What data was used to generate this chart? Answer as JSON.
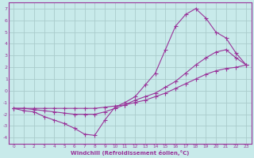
{
  "background_color": "#c8eaea",
  "grid_color": "#aacccc",
  "line_color": "#993399",
  "marker_color": "#993399",
  "xlabel": "Windchill (Refroidissement éolien,°C)",
  "xlim": [
    -0.5,
    23.5
  ],
  "ylim": [
    -4.5,
    7.5
  ],
  "xticks": [
    0,
    1,
    2,
    3,
    4,
    5,
    6,
    7,
    8,
    9,
    10,
    11,
    12,
    13,
    14,
    15,
    16,
    17,
    18,
    19,
    20,
    21,
    22,
    23
  ],
  "yticks": [
    -4,
    -3,
    -2,
    -1,
    0,
    1,
    2,
    3,
    4,
    5,
    6,
    7
  ],
  "line1_x": [
    0,
    1,
    2,
    3,
    4,
    5,
    6,
    7,
    8,
    9,
    10,
    11,
    12,
    13,
    14,
    15,
    16,
    17,
    18,
    19,
    20,
    21,
    22,
    23
  ],
  "line1_y": [
    -1.5,
    -1.7,
    -1.8,
    -2.2,
    -2.5,
    -2.8,
    -3.2,
    -3.7,
    -3.8,
    -2.5,
    -1.4,
    -1.0,
    -0.5,
    0.5,
    1.5,
    3.5,
    5.5,
    6.5,
    7.0,
    6.2,
    5.0,
    4.5,
    3.2,
    2.2
  ],
  "line2_x": [
    0,
    1,
    2,
    3,
    4,
    5,
    6,
    7,
    8,
    9,
    10,
    11,
    12,
    13,
    14,
    15,
    16,
    17,
    18,
    19,
    20,
    21,
    22,
    23
  ],
  "line2_y": [
    -1.5,
    -1.5,
    -1.6,
    -1.7,
    -1.8,
    -1.9,
    -2.0,
    -2.0,
    -2.0,
    -1.8,
    -1.5,
    -1.2,
    -0.8,
    -0.5,
    -0.2,
    0.3,
    0.8,
    1.5,
    2.2,
    2.8,
    3.3,
    3.5,
    2.8,
    2.2
  ],
  "line3_x": [
    0,
    1,
    2,
    3,
    4,
    5,
    6,
    7,
    8,
    9,
    10,
    11,
    12,
    13,
    14,
    15,
    16,
    17,
    18,
    19,
    20,
    21,
    22,
    23
  ],
  "line3_y": [
    -1.5,
    -1.5,
    -1.5,
    -1.5,
    -1.5,
    -1.5,
    -1.5,
    -1.5,
    -1.5,
    -1.4,
    -1.3,
    -1.2,
    -1.0,
    -0.8,
    -0.5,
    -0.2,
    0.2,
    0.6,
    1.0,
    1.4,
    1.7,
    1.9,
    2.0,
    2.2
  ]
}
